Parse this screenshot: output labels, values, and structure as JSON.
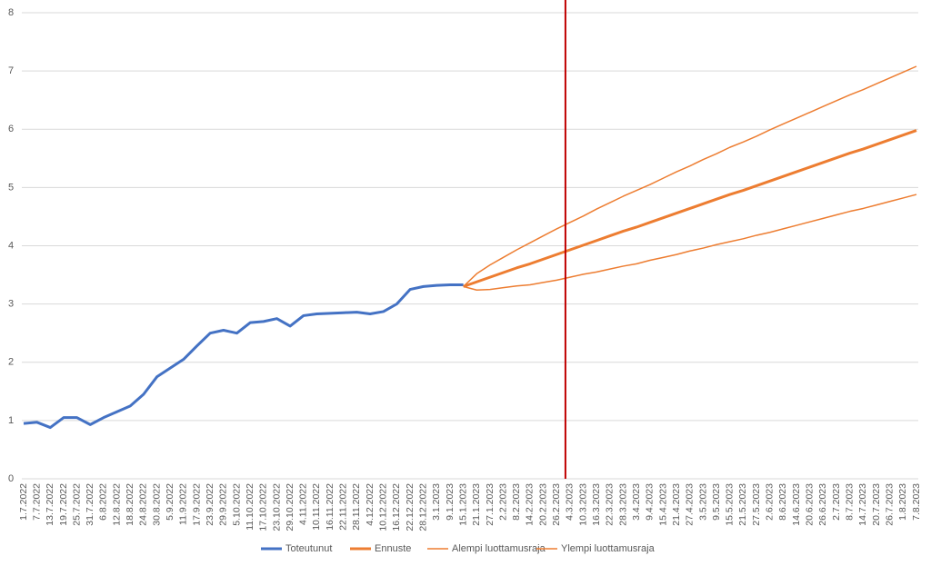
{
  "chart_data": {
    "type": "line",
    "categories": [
      "1.7.2022",
      "7.7.2022",
      "13.7.2022",
      "19.7.2022",
      "25.7.2022",
      "31.7.2022",
      "6.8.2022",
      "12.8.2022",
      "18.8.2022",
      "24.8.2022",
      "30.8.2022",
      "5.9.2022",
      "11.9.2022",
      "17.9.2022",
      "23.9.2022",
      "29.9.2022",
      "5.10.2022",
      "11.10.2022",
      "17.10.2022",
      "23.10.2022",
      "29.10.2022",
      "4.11.2022",
      "10.11.2022",
      "16.11.2022",
      "22.11.2022",
      "28.11.2022",
      "4.12.2022",
      "10.12.2022",
      "16.12.2022",
      "22.12.2022",
      "28.12.2022",
      "3.1.2023",
      "9.1.2023",
      "15.1.2023",
      "21.1.2023",
      "27.1.2023",
      "2.2.2023",
      "8.2.2023",
      "14.2.2023",
      "20.2.2023",
      "26.2.2023",
      "4.3.2023",
      "10.3.2023",
      "16.3.2023",
      "22.3.2023",
      "28.3.2023",
      "3.4.2023",
      "9.4.2023",
      "15.4.2023",
      "21.4.2023",
      "27.4.2023",
      "3.5.2023",
      "9.5.2023",
      "15.5.2023",
      "21.5.2023",
      "27.5.2023",
      "2.6.2023",
      "8.6.2023",
      "14.6.2023",
      "20.6.2023",
      "26.6.2023",
      "2.7.2023",
      "8.7.2023",
      "14.7.2023",
      "20.7.2023",
      "26.7.2023",
      "1.8.2023",
      "7.8.2023"
    ],
    "series": [
      {
        "name": "Toteutunut",
        "color": "#4472c4",
        "width": 3,
        "values": [
          0.95,
          0.97,
          0.88,
          1.05,
          1.05,
          0.93,
          1.05,
          1.15,
          1.25,
          1.45,
          1.75,
          1.9,
          2.05,
          2.28,
          2.5,
          2.55,
          2.5,
          2.68,
          2.7,
          2.75,
          2.62,
          2.8,
          2.83,
          2.84,
          2.85,
          2.86,
          2.83,
          2.87,
          3.0,
          3.25,
          3.3,
          3.32,
          3.33,
          3.33,
          null,
          null,
          null,
          null,
          null,
          null,
          null,
          null,
          null,
          null,
          null,
          null,
          null,
          null,
          null,
          null,
          null,
          null,
          null,
          null,
          null,
          null,
          null,
          null,
          null,
          null,
          null,
          null,
          null,
          null,
          null,
          null,
          null,
          null
        ]
      },
      {
        "name": "Ennuste",
        "color": "#ed7d31",
        "width": 3,
        "values": [
          null,
          null,
          null,
          null,
          null,
          null,
          null,
          null,
          null,
          null,
          null,
          null,
          null,
          null,
          null,
          null,
          null,
          null,
          null,
          null,
          null,
          null,
          null,
          null,
          null,
          null,
          null,
          null,
          null,
          null,
          null,
          null,
          null,
          3.3,
          3.38,
          3.46,
          3.54,
          3.62,
          3.69,
          3.77,
          3.85,
          3.93,
          4.01,
          4.09,
          4.17,
          4.25,
          4.32,
          4.4,
          4.48,
          4.56,
          4.64,
          4.72,
          4.8,
          4.88,
          4.95,
          5.03,
          5.11,
          5.19,
          5.27,
          5.35,
          5.43,
          5.51,
          5.59,
          5.66,
          5.74,
          5.82,
          5.9,
          5.98
        ]
      },
      {
        "name": "Alempi luottamusraja",
        "color": "#ed7d31",
        "width": 1.5,
        "values": [
          null,
          null,
          null,
          null,
          null,
          null,
          null,
          null,
          null,
          null,
          null,
          null,
          null,
          null,
          null,
          null,
          null,
          null,
          null,
          null,
          null,
          null,
          null,
          null,
          null,
          null,
          null,
          null,
          null,
          null,
          null,
          null,
          null,
          3.3,
          3.24,
          3.25,
          3.28,
          3.31,
          3.33,
          3.37,
          3.41,
          3.46,
          3.51,
          3.55,
          3.6,
          3.65,
          3.69,
          3.75,
          3.8,
          3.85,
          3.91,
          3.96,
          4.02,
          4.07,
          4.12,
          4.18,
          4.23,
          4.29,
          4.35,
          4.41,
          4.47,
          4.53,
          4.59,
          4.64,
          4.7,
          4.76,
          4.82,
          4.88
        ]
      },
      {
        "name": "Ylempi luottamusraja",
        "color": "#ed7d31",
        "width": 1.5,
        "values": [
          null,
          null,
          null,
          null,
          null,
          null,
          null,
          null,
          null,
          null,
          null,
          null,
          null,
          null,
          null,
          null,
          null,
          null,
          null,
          null,
          null,
          null,
          null,
          null,
          null,
          null,
          null,
          null,
          null,
          null,
          null,
          null,
          null,
          3.3,
          3.52,
          3.67,
          3.8,
          3.93,
          4.05,
          4.17,
          4.29,
          4.4,
          4.51,
          4.63,
          4.74,
          4.85,
          4.95,
          5.05,
          5.16,
          5.27,
          5.37,
          5.48,
          5.58,
          5.69,
          5.78,
          5.88,
          5.99,
          6.09,
          6.19,
          6.29,
          6.39,
          6.49,
          6.59,
          6.68,
          6.78,
          6.88,
          6.98,
          7.08
        ]
      }
    ],
    "ylim": [
      0,
      8
    ],
    "yticks": [
      0,
      1,
      2,
      3,
      4,
      5,
      6,
      7,
      8
    ],
    "grid": true,
    "vertical_line": {
      "at": "4.3.2023",
      "color": "#c00000"
    },
    "legend": "bottom"
  }
}
